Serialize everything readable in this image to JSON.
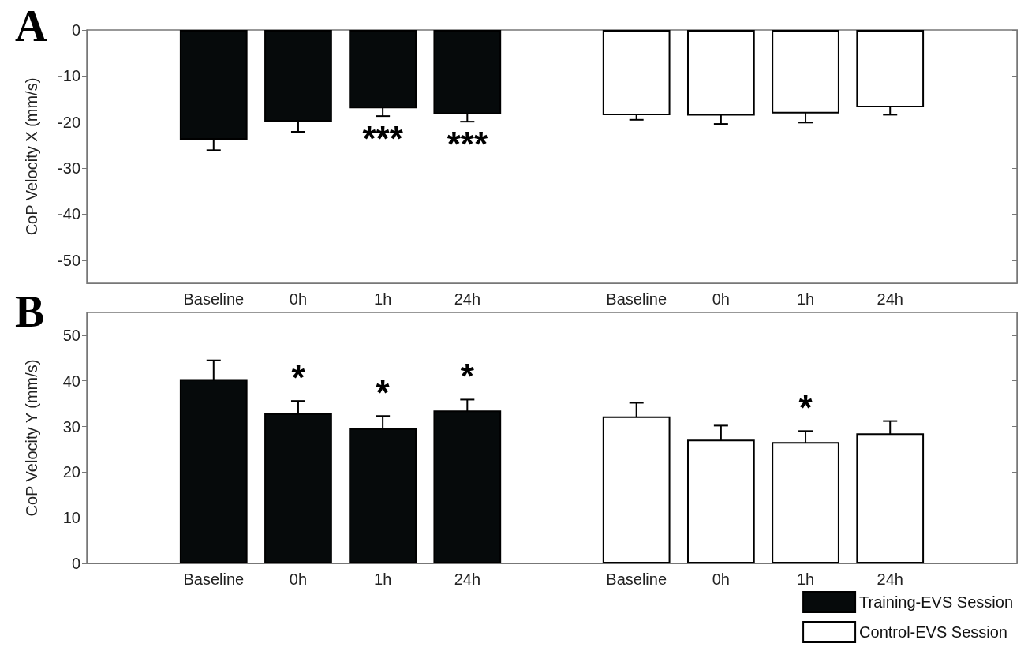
{
  "chart_data": [
    {
      "type": "bar",
      "title": "A",
      "ylabel": "CoP Velocity X (mm/s)",
      "categories": [
        null,
        "Baseline",
        "0h",
        "1h",
        "24h",
        null,
        "Baseline",
        "0h",
        "1h",
        "24h",
        null
      ],
      "series": [
        {
          "color": "#060a0b",
          "values": [
            null,
            -23.8,
            -19.9,
            -17.0,
            -18.3,
            null,
            null,
            null,
            null,
            null,
            null
          ],
          "errors": [
            null,
            2.3,
            2.2,
            1.7,
            1.6,
            null,
            null,
            null,
            null,
            null,
            null
          ]
        },
        {
          "color": "#ffffff",
          "values": [
            null,
            null,
            null,
            null,
            null,
            null,
            -18.5,
            -18.6,
            -18.1,
            -16.8,
            null
          ],
          "errors": [
            null,
            null,
            null,
            null,
            null,
            null,
            1.0,
            1.8,
            2.0,
            1.6,
            null
          ]
        }
      ],
      "ylim": [
        -55,
        0
      ],
      "yticks": [
        -50,
        -40,
        -30,
        -20,
        -10,
        0
      ],
      "annotations": [
        {
          "text": "***",
          "x": "1h",
          "y": -17.0
        },
        {
          "text": "***",
          "x": "24h",
          "y": -18.3
        }
      ]
    },
    {
      "type": "bar",
      "title": "B",
      "ylabel": "CoP Velocity Y (mm/s)",
      "categories": [
        null,
        "Baseline",
        "0h",
        "1h",
        "24h",
        null,
        "Baseline",
        "0h",
        "1h",
        "24h",
        null
      ],
      "series": [
        {
          "name": "Training-EVS Session",
          "color": "#060a0b",
          "values": [
            null,
            40.4,
            32.9,
            29.6,
            33.5,
            null,
            null,
            null,
            null,
            null,
            null
          ],
          "errors": [
            null,
            4.1,
            2.7,
            2.7,
            2.4,
            null,
            null,
            null,
            null,
            null,
            null
          ]
        },
        {
          "name": "Control-EVS Session",
          "color": "#ffffff",
          "values": [
            null,
            null,
            null,
            null,
            null,
            null,
            32.2,
            27.1,
            26.6,
            28.5,
            null
          ],
          "errors": [
            null,
            null,
            null,
            null,
            null,
            null,
            3.0,
            3.1,
            2.4,
            2.7,
            null
          ]
        }
      ],
      "ylim": [
        0,
        55
      ],
      "yticks": [
        0,
        10,
        20,
        30,
        40,
        50
      ],
      "legend": "bottom right",
      "annotations": [
        {
          "text": "*",
          "x": "0h",
          "y": 32.9
        },
        {
          "text": "*",
          "x": "1h",
          "y": 29.6
        },
        {
          "text": "*",
          "x": "24h",
          "y": 33.5
        },
        {
          "text": "*",
          "y": 26.6
        }
      ]
    }
  ]
}
